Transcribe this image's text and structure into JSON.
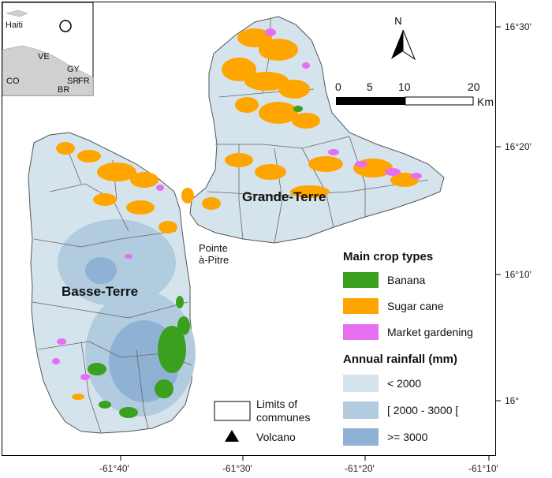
{
  "inset": {
    "labels": [
      "Haiti",
      "VE",
      "GY",
      "SR",
      "FR",
      "CO",
      "BR"
    ]
  },
  "north_arrow": {
    "label": "N"
  },
  "scale_bar": {
    "ticks": [
      "0",
      "5",
      "10",
      "20"
    ],
    "unit": "Km"
  },
  "places": {
    "grande_terre": "Grande-Terre",
    "basse_terre": "Basse-Terre",
    "pointe_a_pitre": [
      "Pointe",
      "à-Pitre"
    ]
  },
  "axes": {
    "longitude_ticks": [
      "-61°40′",
      "-61°30′",
      "-61°20′",
      "-61°10′"
    ],
    "latitude_ticks": [
      "16°30′",
      "16°20′",
      "16°10′",
      "16°"
    ]
  },
  "legend": {
    "crop_title": "Main crop types",
    "crops": [
      {
        "label": "Banana",
        "color": "#3aa01e"
      },
      {
        "label": "Sugar cane",
        "color": "#ffa500"
      },
      {
        "label": "Market gardening",
        "color": "#e66ef0"
      }
    ],
    "rain_title": "Annual rainfall (mm)",
    "rainfall": [
      {
        "label": "< 2000",
        "color": "#d5e4ec"
      },
      {
        "label": "[ 2000 - 3000 [",
        "color": "#b1cbdf"
      },
      {
        "label": ">= 3000",
        "color": "#8fb1d4"
      }
    ],
    "communes_label": [
      "Limits of",
      "communes"
    ],
    "volcano_label": "Volcano"
  },
  "colors": {
    "land_base": "#d5e4ec",
    "sea": "#ffffff",
    "inset_land": "#d0d0d0"
  }
}
